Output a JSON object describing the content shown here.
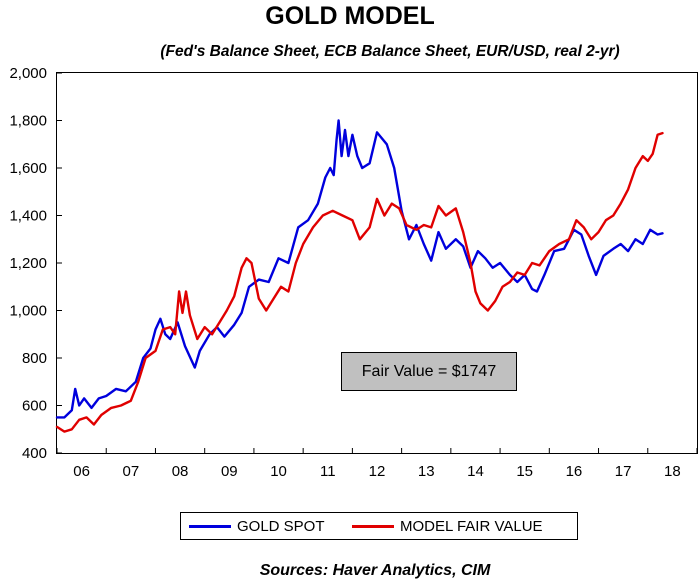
{
  "chart_data": {
    "type": "line",
    "title": "GOLD MODEL",
    "subtitle": "(Fed's Balance Sheet, ECB Balance Sheet, EUR/USD, real 2-yr)",
    "annotation": "Fair Value = $1747",
    "source": "Sources:  Haver Analytics, CIM",
    "ylim": [
      400,
      2000
    ],
    "y_ticks": [
      400,
      600,
      800,
      1000,
      1200,
      1400,
      1600,
      1800,
      2000
    ],
    "y_tick_labels": [
      "400",
      "600",
      "800",
      "1,000",
      "1,200",
      "1,400",
      "1,600",
      "1,800",
      "2,000"
    ],
    "xlim": [
      2006.0,
      2019.0
    ],
    "x_ticks": [
      2006.5,
      2007.5,
      2008.5,
      2009.5,
      2010.5,
      2011.5,
      2012.5,
      2013.5,
      2014.5,
      2015.5,
      2016.5,
      2017.5,
      2018.5
    ],
    "x_tick_labels": [
      "06",
      "07",
      "08",
      "09",
      "10",
      "11",
      "12",
      "13",
      "14",
      "15",
      "16",
      "17",
      "18"
    ],
    "grid": false,
    "legend_position": "bottom",
    "series": [
      {
        "name": "GOLD SPOT",
        "color": "#0000dd",
        "x": [
          2006.0,
          2006.15,
          2006.3,
          2006.37,
          2006.45,
          2006.55,
          2006.7,
          2006.85,
          2007.0,
          2007.2,
          2007.4,
          2007.6,
          2007.75,
          2007.9,
          2008.0,
          2008.1,
          2008.2,
          2008.3,
          2008.45,
          2008.6,
          2008.8,
          2008.9,
          2009.1,
          2009.25,
          2009.4,
          2009.6,
          2009.75,
          2009.9,
          2010.1,
          2010.3,
          2010.5,
          2010.7,
          2010.9,
          2011.1,
          2011.3,
          2011.45,
          2011.55,
          2011.62,
          2011.68,
          2011.72,
          2011.78,
          2011.85,
          2011.92,
          2012.0,
          2012.1,
          2012.2,
          2012.35,
          2012.5,
          2012.7,
          2012.85,
          2013.0,
          2013.15,
          2013.3,
          2013.45,
          2013.6,
          2013.75,
          2013.9,
          2014.1,
          2014.25,
          2014.4,
          2014.55,
          2014.7,
          2014.85,
          2015.0,
          2015.2,
          2015.35,
          2015.5,
          2015.65,
          2015.75,
          2015.9,
          2016.1,
          2016.3,
          2016.5,
          2016.65,
          2016.8,
          2016.95,
          2017.1,
          2017.3,
          2017.45,
          2017.6,
          2017.75,
          2017.9,
          2018.05,
          2018.2,
          2018.3
        ],
        "values": [
          550,
          550,
          580,
          670,
          600,
          630,
          590,
          630,
          640,
          670,
          660,
          700,
          800,
          840,
          920,
          965,
          900,
          880,
          950,
          850,
          760,
          830,
          900,
          930,
          890,
          940,
          990,
          1100,
          1130,
          1120,
          1220,
          1200,
          1350,
          1380,
          1450,
          1560,
          1600,
          1570,
          1720,
          1800,
          1650,
          1760,
          1650,
          1740,
          1650,
          1600,
          1620,
          1750,
          1700,
          1600,
          1420,
          1300,
          1360,
          1280,
          1210,
          1330,
          1260,
          1300,
          1270,
          1180,
          1250,
          1220,
          1180,
          1200,
          1150,
          1120,
          1150,
          1090,
          1080,
          1150,
          1250,
          1260,
          1340,
          1320,
          1230,
          1150,
          1230,
          1260,
          1280,
          1250,
          1300,
          1280,
          1340,
          1320,
          1325
        ]
      },
      {
        "name": "MODEL FAIR VALUE",
        "color": "#e00000",
        "x": [
          2006.0,
          2006.15,
          2006.3,
          2006.45,
          2006.6,
          2006.75,
          2006.9,
          2007.1,
          2007.3,
          2007.5,
          2007.65,
          2007.8,
          2008.0,
          2008.15,
          2008.3,
          2008.4,
          2008.48,
          2008.55,
          2008.62,
          2008.7,
          2008.85,
          2009.0,
          2009.15,
          2009.3,
          2009.45,
          2009.6,
          2009.75,
          2009.85,
          2009.95,
          2010.1,
          2010.25,
          2010.4,
          2010.55,
          2010.7,
          2010.85,
          2011.0,
          2011.2,
          2011.4,
          2011.6,
          2011.8,
          2012.0,
          2012.15,
          2012.35,
          2012.5,
          2012.65,
          2012.8,
          2012.95,
          2013.1,
          2013.3,
          2013.45,
          2013.6,
          2013.75,
          2013.9,
          2014.1,
          2014.25,
          2014.4,
          2014.5,
          2014.6,
          2014.75,
          2014.9,
          2015.05,
          2015.2,
          2015.35,
          2015.5,
          2015.65,
          2015.8,
          2016.0,
          2016.2,
          2016.4,
          2016.55,
          2016.7,
          2016.85,
          2017.0,
          2017.15,
          2017.3,
          2017.45,
          2017.6,
          2017.75,
          2017.9,
          2018.0,
          2018.1,
          2018.2,
          2018.3
        ],
        "values": [
          510,
          490,
          500,
          540,
          550,
          520,
          560,
          590,
          600,
          620,
          700,
          800,
          830,
          920,
          930,
          900,
          1080,
          990,
          1080,
          980,
          880,
          930,
          900,
          950,
          1000,
          1060,
          1180,
          1220,
          1200,
          1050,
          1000,
          1050,
          1100,
          1080,
          1200,
          1280,
          1350,
          1400,
          1420,
          1400,
          1380,
          1300,
          1350,
          1470,
          1400,
          1450,
          1430,
          1360,
          1340,
          1360,
          1350,
          1440,
          1400,
          1430,
          1330,
          1200,
          1080,
          1030,
          1000,
          1040,
          1100,
          1120,
          1160,
          1150,
          1200,
          1190,
          1250,
          1280,
          1300,
          1380,
          1350,
          1300,
          1330,
          1380,
          1400,
          1450,
          1510,
          1600,
          1650,
          1630,
          1660,
          1740,
          1747
        ]
      }
    ]
  }
}
